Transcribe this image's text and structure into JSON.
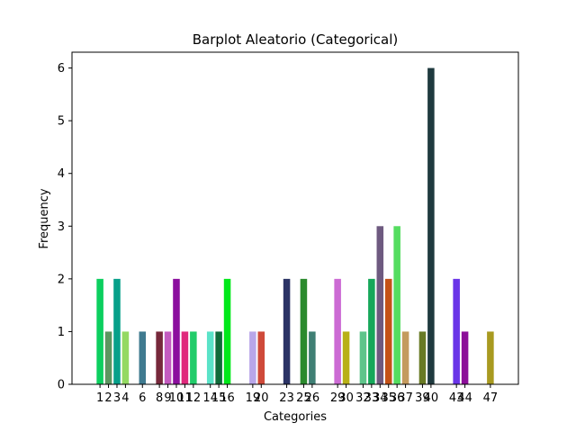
{
  "chart_data": {
    "type": "bar",
    "title": "Barplot Aleatorio (Categorical)",
    "xlabel": "Categories",
    "ylabel": "Frequency",
    "ylim": [
      0,
      6.3
    ],
    "yticks": [
      0,
      1,
      2,
      3,
      4,
      5,
      6
    ],
    "grid": false,
    "bars": [
      {
        "category": "1",
        "value": 2,
        "color": "#0ccf5f"
      },
      {
        "category": "2",
        "value": 1,
        "color": "#5c9660"
      },
      {
        "category": "3",
        "value": 2,
        "color": "#07a08a"
      },
      {
        "category": "4",
        "value": 1,
        "color": "#94d962"
      },
      {
        "category": "6",
        "value": 1,
        "color": "#3f7a8f"
      },
      {
        "category": "8",
        "value": 1,
        "color": "#76283b"
      },
      {
        "category": "9",
        "value": 1,
        "color": "#c45bc0"
      },
      {
        "category": "10",
        "value": 2,
        "color": "#8b0f9e"
      },
      {
        "category": "11",
        "value": 1,
        "color": "#e02a7c"
      },
      {
        "category": "12",
        "value": 1,
        "color": "#22cc6a"
      },
      {
        "category": "14",
        "value": 1,
        "color": "#5ae3c8"
      },
      {
        "category": "15",
        "value": 1,
        "color": "#0f6b3a"
      },
      {
        "category": "16",
        "value": 2,
        "color": "#00e81a"
      },
      {
        "category": "19",
        "value": 1,
        "color": "#b8a6e8"
      },
      {
        "category": "20",
        "value": 1,
        "color": "#cf4a3a"
      },
      {
        "category": "23",
        "value": 2,
        "color": "#2b3365"
      },
      {
        "category": "25",
        "value": 2,
        "color": "#2b8a2d"
      },
      {
        "category": "26",
        "value": 1,
        "color": "#3f7f74"
      },
      {
        "category": "29",
        "value": 2,
        "color": "#cc6bd4"
      },
      {
        "category": "30",
        "value": 1,
        "color": "#b8b017"
      },
      {
        "category": "32",
        "value": 1,
        "color": "#5ec48a"
      },
      {
        "category": "33",
        "value": 2,
        "color": "#16a85a"
      },
      {
        "category": "34",
        "value": 3,
        "color": "#6e5a80"
      },
      {
        "category": "35",
        "value": 2,
        "color": "#c45218"
      },
      {
        "category": "36",
        "value": 3,
        "color": "#55dd60"
      },
      {
        "category": "37",
        "value": 1,
        "color": "#c49a5e"
      },
      {
        "category": "39",
        "value": 1,
        "color": "#687a24"
      },
      {
        "category": "40",
        "value": 6,
        "color": "#1f3a3f"
      },
      {
        "category": "43",
        "value": 2,
        "color": "#6a35e8"
      },
      {
        "category": "44",
        "value": 1,
        "color": "#8c0f99"
      },
      {
        "category": "47",
        "value": 1,
        "color": "#a89a20"
      }
    ]
  }
}
